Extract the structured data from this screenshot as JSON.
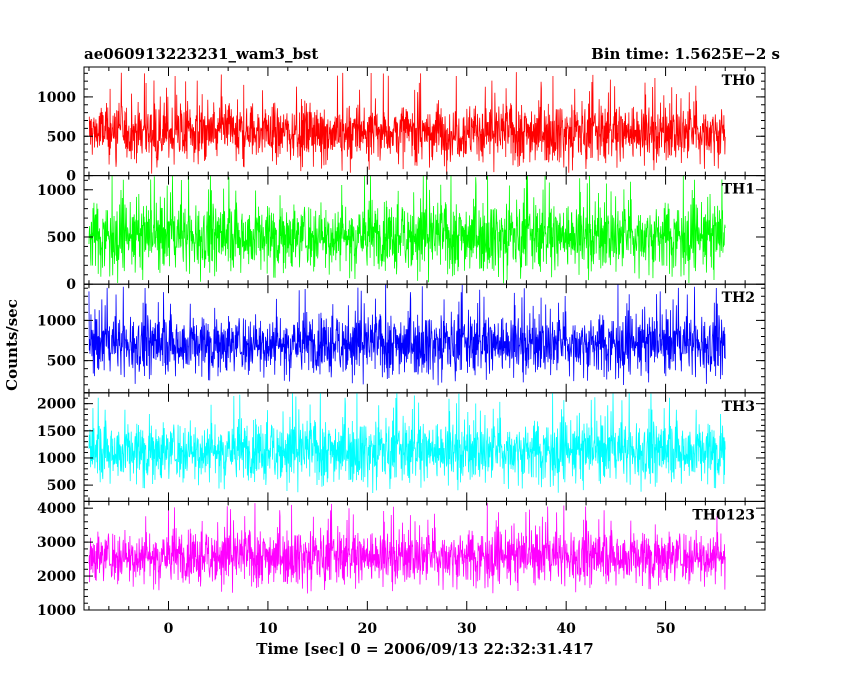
{
  "header": {
    "title_left": "ae060913223231_wam3_bst",
    "title_right": "Bin time: 1.5625E−2 s"
  },
  "chart_data": {
    "type": "line",
    "title": "ae060913223231_wam3_bst",
    "subtitle": "Bin time: 1.5625E−2 s",
    "xlabel": "Time [sec] 0 = 2006/09/13 22:32:31.417",
    "ylabel": "Counts/sec",
    "xlim": [
      -8.5,
      60
    ],
    "x_range_data": [
      -8,
      56
    ],
    "xticks": [
      0,
      10,
      20,
      30,
      40,
      50
    ],
    "grid": false,
    "panels": [
      {
        "name": "TH0",
        "color": "#ff0000",
        "ylim": [
          0,
          1380
        ],
        "yticks": [
          0,
          500,
          1000
        ],
        "base": 560,
        "spread": 330,
        "peak": 1350
      },
      {
        "name": "TH1",
        "color": "#00ff00",
        "ylim": [
          0,
          1150
        ],
        "yticks": [
          0,
          500,
          1000
        ],
        "base": 520,
        "spread": 320,
        "peak": 1150
      },
      {
        "name": "TH2",
        "color": "#0000ff",
        "ylim": [
          100,
          1450
        ],
        "yticks": [
          500,
          1000
        ],
        "base": 720,
        "spread": 330,
        "peak": 1450
      },
      {
        "name": "TH3",
        "color": "#00ffff",
        "ylim": [
          200,
          2200
        ],
        "yticks": [
          500,
          1000,
          1500,
          2000
        ],
        "base": 1150,
        "spread": 500,
        "peak": 2200
      },
      {
        "name": "TH0123",
        "color": "#ff00ff",
        "ylim": [
          1000,
          4200
        ],
        "yticks": [
          1000,
          2000,
          3000,
          4000
        ],
        "base": 2600,
        "spread": 700,
        "peak": 4150
      }
    ]
  }
}
